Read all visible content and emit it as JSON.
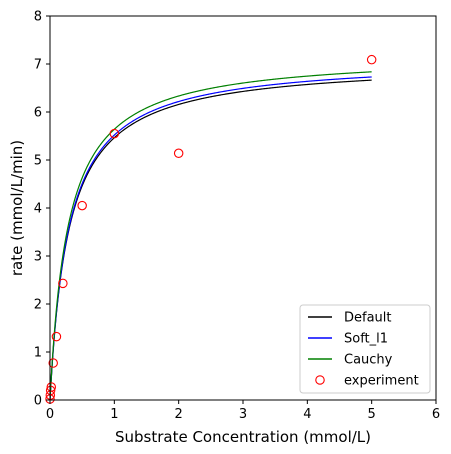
{
  "chart_data": {
    "type": "line",
    "xlabel": "Substrate Concentration (mmol/L)",
    "ylabel": "rate (mmol/L/min)",
    "xlim": [
      0,
      6
    ],
    "ylim": [
      0,
      8
    ],
    "xticks": [
      0,
      1,
      2,
      3,
      4,
      5,
      6
    ],
    "yticks": [
      0,
      1,
      2,
      3,
      4,
      5,
      6,
      7,
      8
    ],
    "grid": false,
    "legend_position": "bottom-right",
    "series": [
      {
        "name": "Default",
        "kind": "line",
        "color": "#000000",
        "vmax": 7.05,
        "km": 0.29,
        "x_range": [
          0,
          5
        ]
      },
      {
        "name": "Soft_l1",
        "kind": "line",
        "color": "#0000ff",
        "vmax": 7.12,
        "km": 0.29,
        "x_range": [
          0,
          5
        ]
      },
      {
        "name": "Cauchy",
        "kind": "line",
        "color": "#008000",
        "vmax": 7.22,
        "km": 0.28,
        "x_range": [
          0,
          5
        ]
      },
      {
        "name": "experiment",
        "kind": "scatter",
        "color": "#ff0000",
        "x": [
          0.0,
          0.005,
          0.01,
          0.02,
          0.05,
          0.1,
          0.2,
          0.5,
          1.0,
          2.0,
          5.0
        ],
        "y": [
          0.02,
          0.1,
          0.2,
          0.27,
          0.77,
          1.32,
          2.43,
          4.05,
          5.55,
          5.14,
          7.09
        ]
      }
    ]
  }
}
